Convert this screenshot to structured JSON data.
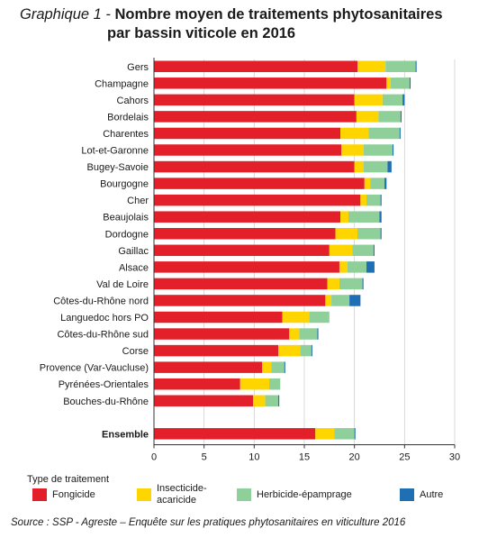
{
  "header": {
    "prefix": "Graphique 1 -",
    "title_line1": "Nombre moyen de traitements phytosanitaires",
    "title_line2": "par bassin viticole en 2016"
  },
  "legend": {
    "title": "Type de traitement",
    "items": [
      {
        "label": "Fongicide",
        "color": "#e3202a"
      },
      {
        "label": "Insecticide-acaricide",
        "color": "#ffd500"
      },
      {
        "label": "Herbicide-épamprage",
        "color": "#8fcf9a"
      },
      {
        "label": "Autre",
        "color": "#1f6fb5"
      }
    ]
  },
  "source": "Source : SSP - Agreste –  Enquête sur les pratiques phytosanitaires en viticulture 2016",
  "chart_data": {
    "type": "bar",
    "orientation": "horizontal",
    "stacked": true,
    "categories": [
      "Gers",
      "Champagne",
      "Cahors",
      "Bordelais",
      "Charentes",
      "Lot-et-Garonne",
      "Bugey-Savoie",
      "Bourgogne",
      "Cher",
      "Beaujolais",
      "Dordogne",
      "Gaillac",
      "Alsace",
      "Val de Loire",
      "Côtes-du-Rhône nord",
      "Languedoc hors PO",
      "Côtes-du-Rhône sud",
      "Corse",
      "Provence (Var-Vaucluse)",
      "Pyrénées-Orientales",
      "Bouches-du-Rhône",
      "Ensemble"
    ],
    "bold_categories": [
      "Ensemble"
    ],
    "series": [
      {
        "name": "Fongicide",
        "color": "#e3202a",
        "values": [
          20.3,
          23.2,
          20.0,
          20.2,
          18.6,
          18.7,
          20.0,
          21.0,
          20.6,
          18.6,
          18.1,
          17.5,
          18.5,
          17.3,
          17.1,
          12.8,
          13.5,
          12.4,
          10.8,
          8.6,
          9.9,
          16.1
        ]
      },
      {
        "name": "Insecticide-acaricide",
        "color": "#ffd500",
        "values": [
          2.8,
          0.4,
          2.8,
          2.2,
          2.8,
          2.2,
          0.9,
          0.6,
          0.6,
          0.8,
          2.2,
          2.3,
          0.8,
          1.2,
          0.6,
          2.7,
          1.0,
          2.2,
          0.9,
          2.9,
          1.2,
          1.9
        ]
      },
      {
        "name": "Herbicide-épamprage",
        "color": "#8fcf9a",
        "values": [
          3.0,
          1.9,
          2.0,
          2.2,
          3.1,
          2.9,
          2.4,
          1.4,
          1.4,
          3.1,
          2.3,
          2.1,
          1.9,
          2.3,
          1.8,
          2.0,
          1.8,
          1.1,
          1.3,
          1.1,
          1.3,
          2.0
        ]
      },
      {
        "name": "Autre",
        "color": "#1f6fb5",
        "values": [
          0.1,
          0.1,
          0.2,
          0.1,
          0.1,
          0.1,
          0.4,
          0.2,
          0.1,
          0.2,
          0.1,
          0.1,
          0.8,
          0.1,
          1.1,
          0.0,
          0.1,
          0.1,
          0.1,
          0.0,
          0.1,
          0.1
        ]
      }
    ],
    "xlim": [
      0,
      30
    ],
    "xticks": [
      "0",
      "5",
      "10",
      "15",
      "20",
      "25",
      "30"
    ],
    "grid": true
  }
}
